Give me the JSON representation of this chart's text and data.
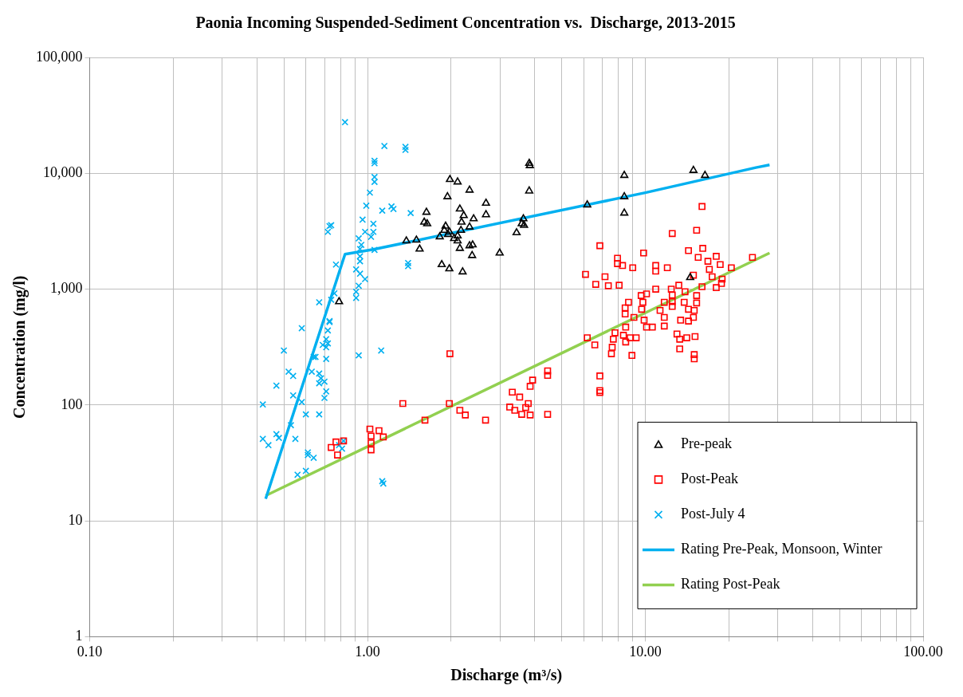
{
  "chart_data": {
    "type": "scatter",
    "title": "Paonia Incoming Suspended-Sediment Concentration vs.  Discharge, 2013-2015",
    "xlabel": "Discharge (m³/s)",
    "ylabel": "Concentration (mg/l)",
    "log": "xy",
    "grid": true,
    "legend": "bottom right",
    "xlim": [
      0.1,
      100
    ],
    "ylim": [
      1,
      100000
    ],
    "xticks": [
      {
        "value": 0.1,
        "label": "0.10"
      },
      {
        "value": 0.2,
        "label": null
      },
      {
        "value": 0.3,
        "label": null
      },
      {
        "value": 0.4,
        "label": null
      },
      {
        "value": 0.5,
        "label": null
      },
      {
        "value": 0.6,
        "label": null
      },
      {
        "value": 0.7,
        "label": null
      },
      {
        "value": 0.8,
        "label": null
      },
      {
        "value": 0.9,
        "label": null
      },
      {
        "value": 1,
        "label": "1.00"
      },
      {
        "value": 2,
        "label": null
      },
      {
        "value": 3,
        "label": null
      },
      {
        "value": 4,
        "label": null
      },
      {
        "value": 5,
        "label": null
      },
      {
        "value": 6,
        "label": null
      },
      {
        "value": 7,
        "label": null
      },
      {
        "value": 8,
        "label": null
      },
      {
        "value": 9,
        "label": null
      },
      {
        "value": 10,
        "label": "10.00"
      },
      {
        "value": 20,
        "label": null
      },
      {
        "value": 30,
        "label": null
      },
      {
        "value": 40,
        "label": null
      },
      {
        "value": 50,
        "label": null
      },
      {
        "value": 60,
        "label": null
      },
      {
        "value": 70,
        "label": null
      },
      {
        "value": 80,
        "label": null
      },
      {
        "value": 90,
        "label": null
      },
      {
        "value": 100,
        "label": "100.00"
      }
    ],
    "yticks": [
      1,
      10,
      100,
      {
        "value": 1000,
        "label": "1,000"
      },
      {
        "value": 10000,
        "label": "10,000"
      },
      {
        "value": 100000,
        "label": "100,000"
      }
    ],
    "series": [
      {
        "name": "Pre-peak",
        "type": "scatter",
        "marker": "triangle",
        "color": "#000000",
        "x": [
          3.82,
          3.84,
          1.98,
          2.11,
          2.33,
          1.94,
          3.82,
          2.67,
          1.63,
          2.67,
          2.15,
          2.22,
          1.6,
          1.64,
          2.18,
          2.41,
          2.33,
          1.91,
          1.89,
          1.97,
          2.17,
          1.82,
          1.95,
          2.11,
          2.05,
          2.11,
          3.64,
          3.59,
          3.66,
          3.44,
          1.5,
          1.38,
          1.54,
          2.15,
          2.33,
          2.39,
          2.38,
          2.99,
          1.85,
          1.97,
          2.2,
          6.18,
          8.4,
          8.4,
          8.4,
          14.9,
          16.4,
          14.5,
          0.79
        ],
        "values": [
          12200,
          11650,
          8840,
          8420,
          7160,
          6280,
          7040,
          5520,
          4610,
          4390,
          4920,
          4320,
          3790,
          3670,
          3790,
          4050,
          3440,
          3500,
          3220,
          3120,
          3220,
          2830,
          2970,
          2880,
          2740,
          2610,
          4050,
          3670,
          3560,
          3070,
          2650,
          2610,
          2220,
          2250,
          2370,
          2410,
          1950,
          2050,
          1630,
          1500,
          1410,
          5340,
          9590,
          6280,
          4540,
          10600,
          9590,
          1260,
          780
        ]
      },
      {
        "name": "Post-Peak",
        "type": "scatter",
        "marker": "square",
        "color": "#ff0000",
        "x": [
          1.98,
          1.34,
          1.97,
          2.15,
          2.25,
          1.61,
          2.66,
          3.32,
          3.53,
          3.85,
          3.93,
          4.45,
          4.45,
          3.25,
          3.39,
          3.59,
          3.79,
          3.71,
          3.85,
          4.45,
          1.02,
          1.1,
          1.14,
          1.03,
          1.03,
          1.03,
          0.74,
          0.77,
          0.78,
          0.82,
          16,
          12.5,
          15.3,
          6.86,
          9.86,
          14.3,
          16.1,
          7.94,
          7.94,
          8.28,
          9.01,
          10.9,
          10.9,
          12,
          15.5,
          18,
          16.8,
          18.6,
          17,
          20.4,
          24.3,
          6.09,
          7.16,
          6.63,
          7.36,
          8.05,
          14.9,
          17.4,
          18.9,
          18.8,
          18,
          16,
          13.2,
          10.9,
          12.4,
          13.9,
          15.3,
          9.66,
          10.1,
          12.5,
          8.7,
          9.8,
          11.7,
          12.5,
          13.8,
          15.3,
          8.46,
          9.7,
          11.3,
          12.5,
          14.3,
          15,
          9.1,
          9.9,
          11.7,
          13.4,
          14.3,
          14.9,
          8.46,
          10.6,
          11.7,
          8.5,
          10.1,
          6.18,
          6.58,
          7.78,
          8.34,
          8.82,
          9.27,
          7.67,
          8.5,
          7.6,
          7.55,
          8.95,
          13,
          13.3,
          14.1,
          15.1,
          13.3,
          15,
          15,
          6.86,
          6.86,
          6.86
        ],
        "values": [
          277,
          103,
          103,
          90,
          82,
          74,
          74,
          129,
          117,
          145,
          164,
          197,
          180,
          96,
          90,
          83,
          103,
          95,
          82,
          83,
          62,
          60,
          53,
          54,
          47,
          41,
          43,
          48,
          37,
          49,
          5170,
          3020,
          3220,
          2370,
          2050,
          2150,
          2250,
          1850,
          1660,
          1600,
          1530,
          1600,
          1430,
          1530,
          1880,
          1920,
          1740,
          1630,
          1480,
          1530,
          1880,
          1340,
          1280,
          1100,
          1070,
          1080,
          1320,
          1280,
          1220,
          1120,
          1030,
          1050,
          1080,
          1000,
          1000,
          950,
          880,
          880,
          910,
          890,
          770,
          770,
          770,
          780,
          770,
          760,
          690,
          670,
          655,
          710,
          670,
          655,
          570,
          540,
          570,
          540,
          530,
          570,
          610,
          470,
          480,
          470,
          470,
          380,
          330,
          420,
          400,
          380,
          380,
          370,
          350,
          315,
          277,
          268,
          410,
          370,
          380,
          390,
          305,
          272,
          250,
          178,
          133,
          128
        ]
      },
      {
        "name": "Post-July 4",
        "type": "scatter",
        "marker": "cross",
        "color": "#00b0f0",
        "x": [
          0.83,
          1.15,
          1.37,
          1.37,
          1.06,
          1.06,
          1.06,
          1.06,
          1.02,
          0.99,
          1.13,
          1.22,
          1.24,
          1.43,
          0.96,
          1.05,
          0.73,
          0.74,
          0.72,
          0.98,
          1.05,
          0.93,
          1.03,
          0.95,
          0.94,
          1.06,
          0.94,
          0.94,
          1.4,
          1.4,
          0.77,
          0.91,
          0.94,
          0.98,
          0.93,
          0.76,
          0.91,
          0.91,
          0.67,
          0.74,
          0.73,
          0.58,
          0.72,
          0.71,
          0.72,
          0.69,
          0.5,
          0.93,
          1.12,
          0.64,
          0.71,
          0.73,
          0.71,
          0.65,
          0.63,
          0.67,
          0.68,
          0.52,
          0.54,
          0.67,
          0.7,
          0.47,
          0.54,
          0.58,
          0.71,
          0.7,
          0.42,
          0.6,
          0.67,
          0.53,
          0.55,
          0.42,
          0.44,
          0.47,
          0.48,
          0.61,
          0.61,
          0.64,
          0.79,
          0.82,
          0.81,
          0.56,
          0.6,
          1.13,
          1.14
        ],
        "values": [
          27600,
          17200,
          16900,
          15900,
          12800,
          12200,
          9290,
          8420,
          6810,
          5250,
          4760,
          5170,
          4920,
          4540,
          3980,
          3670,
          3500,
          3560,
          3120,
          3120,
          3120,
          2740,
          2830,
          2410,
          2220,
          2180,
          1920,
          1740,
          1680,
          1580,
          1630,
          1480,
          1360,
          1220,
          1070,
          920,
          950,
          840,
          770,
          810,
          520,
          460,
          440,
          370,
          340,
          330,
          295,
          268,
          295,
          260,
          250,
          530,
          315,
          260,
          194,
          187,
          170,
          194,
          178,
          154,
          159,
          147,
          121,
          106,
          131,
          115,
          101,
          83,
          83,
          67,
          51,
          51,
          45,
          56,
          52,
          39,
          37,
          35,
          45,
          49,
          42,
          25,
          27,
          22,
          21
        ]
      },
      {
        "name": "Rating Pre-Peak, Monsoon, Winter",
        "type": "line",
        "marker": "none",
        "color": "#00b0f0",
        "x": [
          0.43,
          0.83,
          1.05,
          10,
          25,
          28
        ],
        "values": [
          15.5,
          2000,
          2200,
          6800,
          11200,
          11800
        ]
      },
      {
        "name": "Rating Post-Peak",
        "type": "line",
        "marker": "none",
        "color": "#92d050",
        "x": [
          0.43,
          28
        ],
        "values": [
          16.5,
          2050
        ]
      }
    ]
  }
}
